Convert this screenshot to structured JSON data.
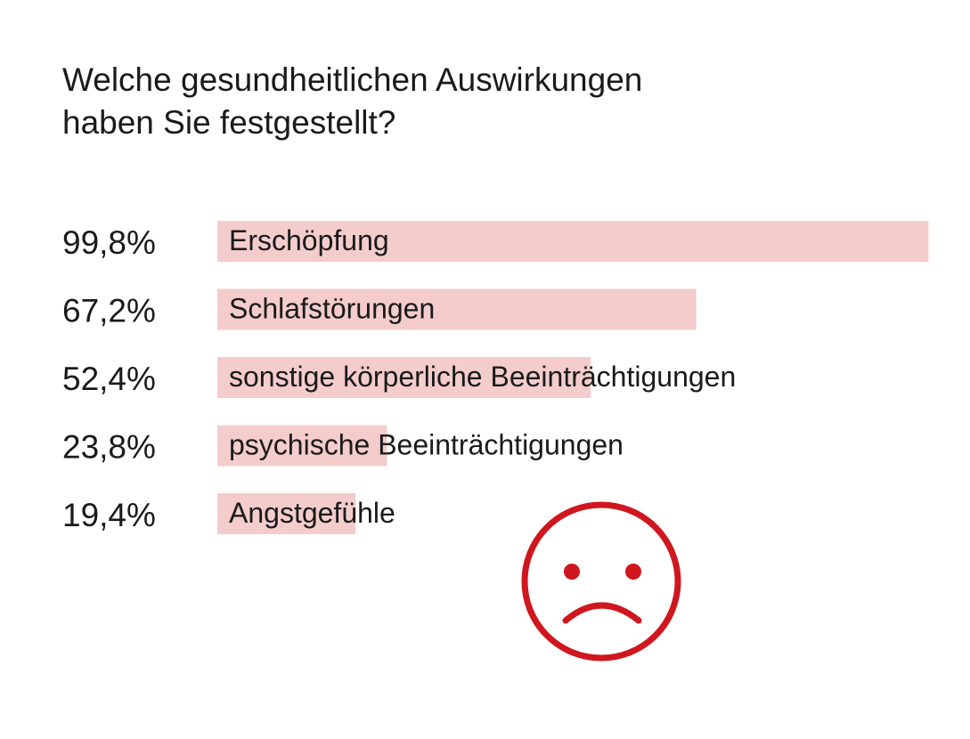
{
  "chart_data": {
    "type": "bar",
    "orientation": "horizontal",
    "title_lines": [
      "Welche gesundheitlichen Auswirkungen",
      "haben Sie festgestellt?"
    ],
    "categories": [
      "Erschöpfung",
      "Schlafstörungen",
      "sonstige körperliche Beeinträchtigungen",
      "psychische Beeinträchtigungen",
      "Angstgefühle"
    ],
    "values": [
      99.8,
      67.2,
      52.4,
      23.8,
      19.4
    ],
    "value_labels": [
      "99,8%",
      "67,2%",
      "52,4%",
      "23,8%",
      "19,4%"
    ],
    "xlim": [
      0,
      100
    ],
    "grid": false,
    "legend": "none",
    "bar_color": "#f4cccc"
  },
  "decoration": {
    "icon": "sad-face-icon",
    "color": "#d0161e"
  }
}
